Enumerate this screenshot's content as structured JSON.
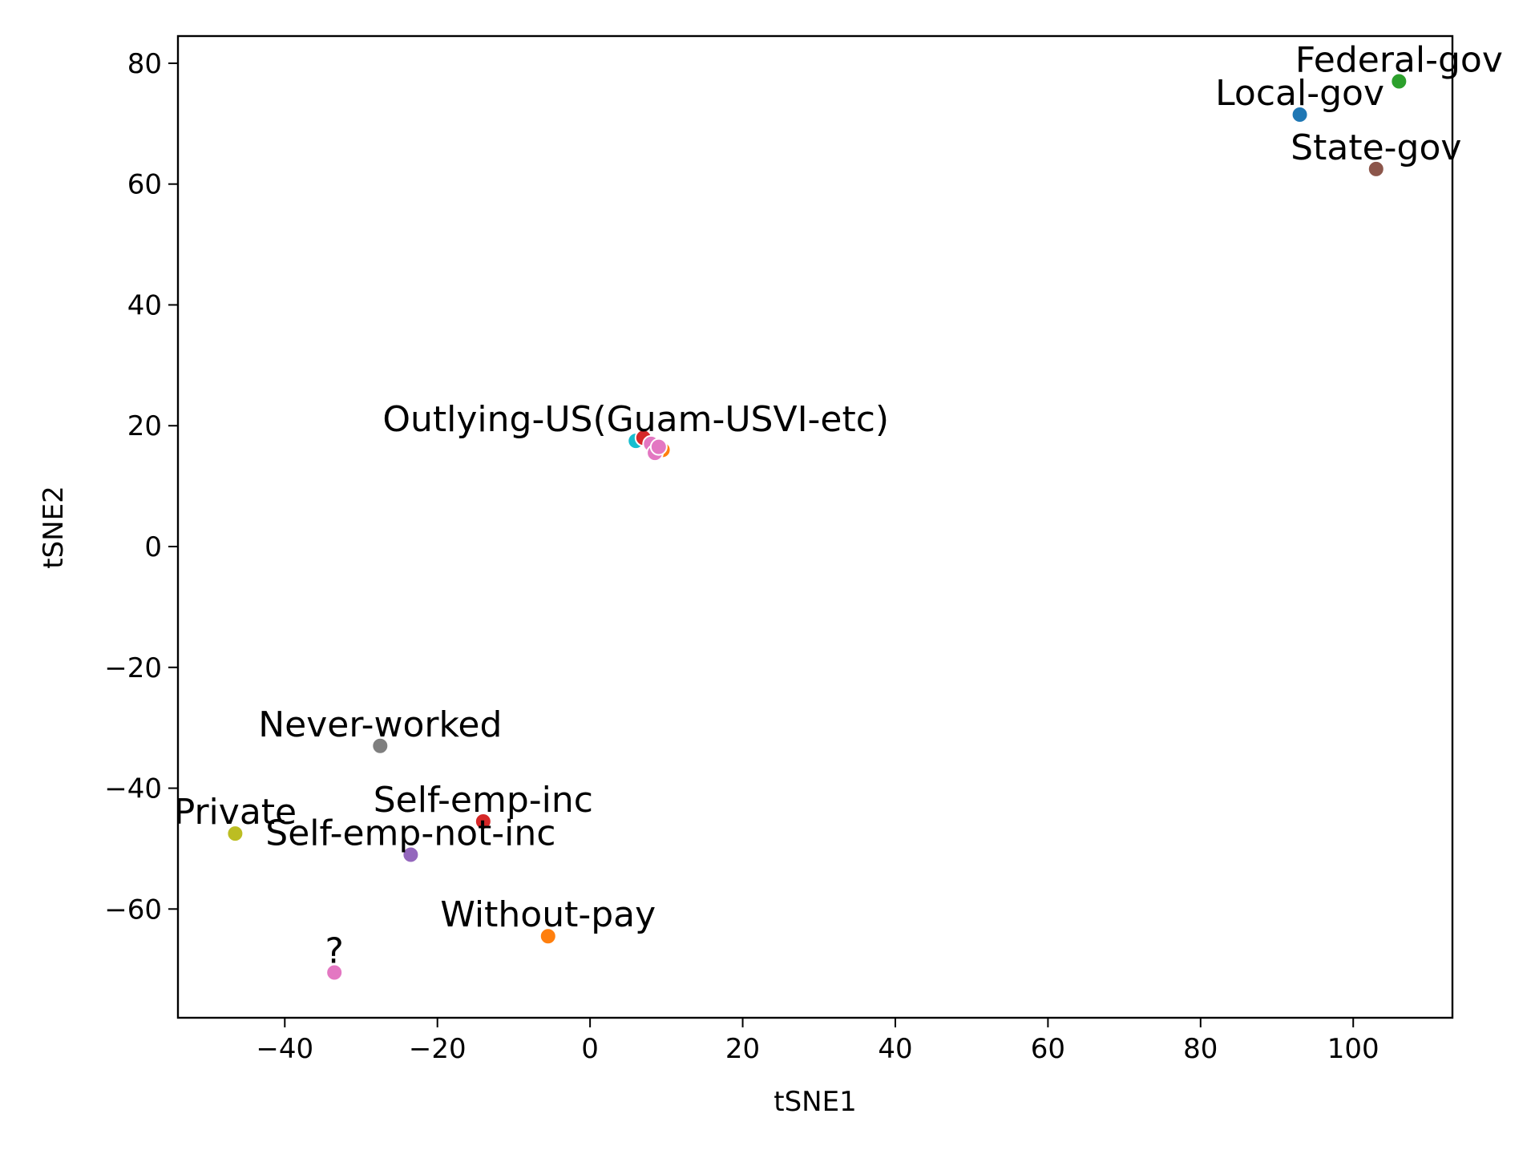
{
  "chart_data": {
    "type": "scatter",
    "xlabel": "tSNE1",
    "ylabel": "tSNE2",
    "xlim": [
      -54,
      113
    ],
    "ylim": [
      -78,
      84.5
    ],
    "xticks": [
      -40,
      -20,
      0,
      20,
      40,
      60,
      80,
      100
    ],
    "yticks": [
      -60,
      -40,
      -20,
      0,
      20,
      40,
      60,
      80
    ],
    "grid": false,
    "points": [
      {
        "label": "Federal-gov",
        "x": 106,
        "y": 77,
        "color": "#2ca02c"
      },
      {
        "label": "Local-gov",
        "x": 93,
        "y": 71.5,
        "color": "#1f77b4"
      },
      {
        "label": "State-gov",
        "x": 103,
        "y": 62.5,
        "color": "#8c564b"
      },
      {
        "label": "Never-worked",
        "x": -27.5,
        "y": -33,
        "color": "#7f7f7f"
      },
      {
        "label": "Self-emp-inc",
        "x": -14,
        "y": -45.5,
        "color": "#d62728"
      },
      {
        "label": "Private",
        "x": -46.5,
        "y": -47.5,
        "color": "#bcbd22"
      },
      {
        "label": "Self-emp-not-inc",
        "x": -23.5,
        "y": -51,
        "color": "#9467bd"
      },
      {
        "label": "Without-pay",
        "x": -5.5,
        "y": -64.5,
        "color": "#ff7f0e"
      },
      {
        "label": "?",
        "x": -33.5,
        "y": -70.5,
        "color": "#e377c2"
      },
      {
        "label": "Outlying-US(Guam-USVI-etc)",
        "x": 6,
        "y": 17.5,
        "color": "#17becf"
      },
      {
        "label": "",
        "x": 7,
        "y": 18,
        "color": "#d62728"
      },
      {
        "label": "",
        "x": 8,
        "y": 17,
        "color": "#e377c2"
      },
      {
        "label": "",
        "x": 9.5,
        "y": 16,
        "color": "#ff7f0e"
      },
      {
        "label": "",
        "x": 8.5,
        "y": 15.5,
        "color": "#e377c2"
      },
      {
        "label": "",
        "x": 9,
        "y": 16.5,
        "color": "#e377c2"
      }
    ],
    "cluster_label_lines": [
      "Outlying-US(Guam-USVI-etc)"
    ]
  }
}
